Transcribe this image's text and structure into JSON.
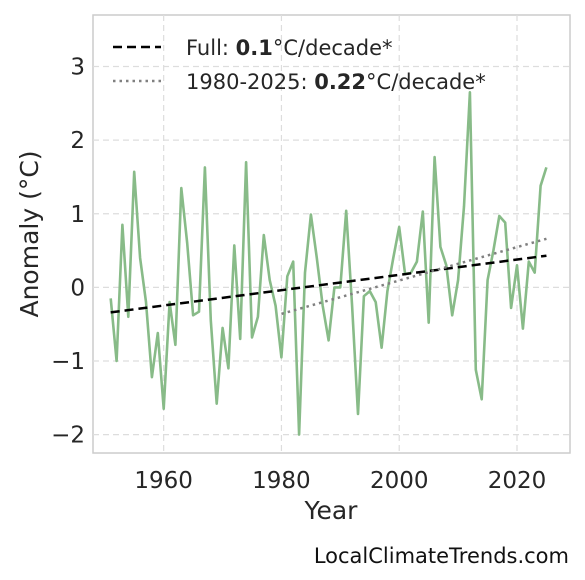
{
  "chart_data": {
    "type": "line",
    "xlabel": "Year",
    "ylabel": "Anomaly (°C)",
    "xlim": [
      1948,
      2029
    ],
    "ylim": [
      -2.25,
      3.7
    ],
    "x_ticks": [
      1960,
      1980,
      2000,
      2020
    ],
    "y_ticks": [
      -2,
      -1,
      0,
      1,
      2,
      3
    ],
    "x_tick_labels": [
      "1960",
      "1980",
      "2000",
      "2020"
    ],
    "y_tick_labels": [
      "−2",
      "−1",
      "0",
      "1",
      "2",
      "3"
    ],
    "grid": true,
    "legend_position": "top-left",
    "series": [
      {
        "color": "#88bb88",
        "style": "solid",
        "x": [
          1951,
          1952,
          1953,
          1954,
          1955,
          1956,
          1957,
          1958,
          1959,
          1960,
          1961,
          1962,
          1963,
          1964,
          1965,
          1966,
          1967,
          1968,
          1969,
          1970,
          1971,
          1972,
          1973,
          1974,
          1975,
          1976,
          1977,
          1978,
          1979,
          1980,
          1981,
          1982,
          1983,
          1984,
          1985,
          1986,
          1987,
          1988,
          1989,
          1990,
          1991,
          1992,
          1993,
          1994,
          1995,
          1996,
          1997,
          1998,
          1999,
          2000,
          2001,
          2002,
          2003,
          2004,
          2005,
          2006,
          2007,
          2008,
          2009,
          2010,
          2011,
          2012,
          2013,
          2014,
          2015,
          2016,
          2017,
          2018,
          2019,
          2020,
          2021,
          2022,
          2023,
          2024,
          2025
        ],
        "y": [
          -0.15,
          -1.0,
          0.85,
          -0.4,
          1.57,
          0.4,
          -0.2,
          -1.22,
          -0.62,
          -1.65,
          -0.2,
          -0.78,
          1.35,
          0.6,
          -0.38,
          -0.33,
          1.63,
          -0.45,
          -1.58,
          -0.55,
          -1.1,
          0.57,
          -0.7,
          1.7,
          -0.68,
          -0.4,
          0.71,
          0.1,
          -0.25,
          -0.95,
          0.15,
          0.35,
          -2.0,
          0.2,
          0.99,
          0.4,
          -0.25,
          -0.72,
          0.0,
          0.0,
          1.04,
          -0.25,
          -1.72,
          -0.12,
          -0.05,
          -0.2,
          -0.82,
          -0.05,
          0.4,
          0.82,
          0.18,
          0.2,
          0.35,
          1.03,
          -0.48,
          1.77,
          0.55,
          0.3,
          -0.38,
          0.1,
          1.1,
          2.65,
          -1.12,
          -1.52,
          0.1,
          0.5,
          0.97,
          0.88,
          -0.28,
          0.3,
          -0.56,
          0.35,
          0.2,
          1.38,
          1.63
        ]
      }
    ],
    "trend_lines": [
      {
        "label_prefix": "Full: ",
        "rate": "0.1",
        "label_suffix": "°C/decade*",
        "style": "dashed",
        "color": "#000000",
        "x": [
          1951,
          2025
        ],
        "y": [
          -0.34,
          0.43
        ]
      },
      {
        "label_prefix": "1980-2025: ",
        "rate": "0.22",
        "label_suffix": "°C/decade*",
        "style": "dotted",
        "color": "#808080",
        "x": [
          1980,
          2025
        ],
        "y": [
          -0.36,
          0.66
        ]
      }
    ]
  },
  "credit": "LocalClimateTrends.com"
}
